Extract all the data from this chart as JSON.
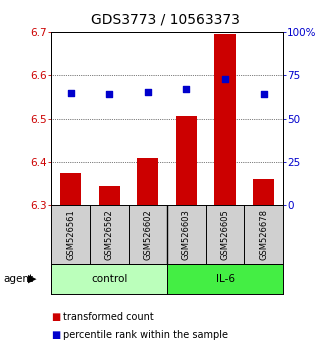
{
  "title": "GDS3773 / 10563373",
  "samples": [
    "GSM526561",
    "GSM526562",
    "GSM526602",
    "GSM526603",
    "GSM526605",
    "GSM526678"
  ],
  "red_values": [
    6.375,
    6.345,
    6.41,
    6.505,
    6.695,
    6.36
  ],
  "blue_values_pct": [
    64.5,
    64.2,
    65.5,
    67.0,
    73.0,
    64.2
  ],
  "ylim_left": [
    6.3,
    6.7
  ],
  "ylim_right": [
    0,
    100
  ],
  "yticks_left": [
    6.3,
    6.4,
    6.5,
    6.6,
    6.7
  ],
  "yticks_right": [
    0,
    25,
    50,
    75,
    100
  ],
  "ytick_labels_right": [
    "0",
    "25",
    "50",
    "75",
    "100%"
  ],
  "bar_color": "#cc0000",
  "dot_color": "#0000cc",
  "background_color": "#ffffff",
  "plot_bg_color": "#ffffff",
  "left_tick_color": "#cc0000",
  "right_tick_color": "#0000cc",
  "title_fontsize": 10,
  "tick_fontsize": 7.5,
  "sample_fontsize": 6.0,
  "group_fontsize": 7.5,
  "legend_fontsize": 7.0,
  "bar_width": 0.55,
  "dot_size": 22,
  "control_color": "#bbffbb",
  "il6_color": "#44ee44",
  "sample_bg_color": "#d0d0d0"
}
